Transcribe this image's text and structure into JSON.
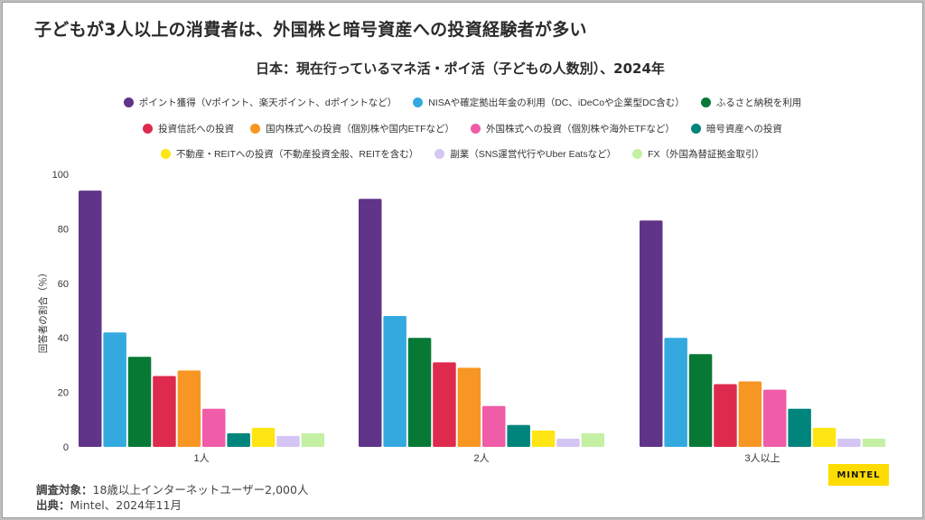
{
  "header": {
    "title": "子どもが3人以上の消費者は、外国株と暗号資産への投資経験者が多い"
  },
  "footer": {
    "sample_label": "調査対象：",
    "sample_value": "18歳以上インターネットユーザー2,000人",
    "source_label": "出典：",
    "source_value": "Mintel、2024年11月"
  },
  "logo": {
    "text": "MINTEL",
    "color": "#ffdc00"
  },
  "chart_data": {
    "type": "bar",
    "title": "日本：現在行っているマネ活・ポイ活（子どもの人数別）、2024年",
    "xlabel": "",
    "ylabel": "回答者の割合（％）",
    "ylim": [
      0,
      100
    ],
    "yticks": [
      "0",
      "20",
      "40",
      "60",
      "80",
      "100"
    ],
    "grid": false,
    "legend_position": "top",
    "categories": [
      "1人",
      "2人",
      "3人以上"
    ],
    "series": [
      {
        "name": "ポイント獲得（Vポイント、楽天ポイント、dポイントなど）",
        "color": "#603489",
        "values": [
          94,
          91,
          83
        ]
      },
      {
        "name": "NISAや確定拠出年金の利用（DC、iDeCoや企業型DC含む）",
        "color": "#34a9e0",
        "values": [
          42,
          48,
          40
        ]
      },
      {
        "name": "ふるさと納税を利用",
        "color": "#077935",
        "values": [
          33,
          40,
          34
        ]
      },
      {
        "name": "投資信託への投資",
        "color": "#de2b4d",
        "values": [
          26,
          31,
          23
        ]
      },
      {
        "name": "国内株式への投資（個別株や国内ETFなど）",
        "color": "#f79622",
        "values": [
          28,
          29,
          24
        ]
      },
      {
        "name": "外国株式への投資（個別株や海外ETFなど）",
        "color": "#ef5ca8",
        "values": [
          14,
          15,
          21
        ]
      },
      {
        "name": "暗号資産への投資",
        "color": "#00857c",
        "values": [
          5,
          8,
          14
        ]
      },
      {
        "name": "不動産・REITへの投資（不動産投資全般、REITを含む）",
        "color": "#ffe513",
        "values": [
          7,
          6,
          7
        ]
      },
      {
        "name": "副業（SNS運営代行やUber Eatsなど）",
        "color": "#d5c5f5",
        "values": [
          4,
          3,
          3
        ]
      },
      {
        "name": "FX（外国為替証拠金取引）",
        "color": "#c4f0a4",
        "values": [
          5,
          5,
          3
        ]
      }
    ]
  }
}
